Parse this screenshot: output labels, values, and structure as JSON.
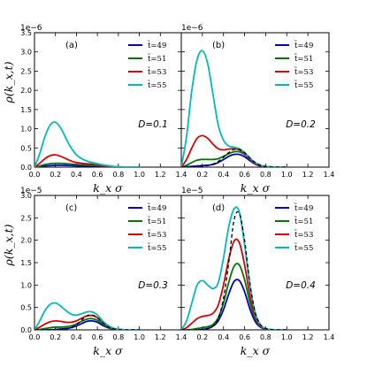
{
  "figure": {
    "xlabel": "k_x σ",
    "ylabel": "ρ(k_x,t)",
    "xticks": [
      "0.0",
      "0.2",
      "0.4",
      "0.6",
      "0.8",
      "1.0",
      "1.2",
      "1.4"
    ],
    "xlim": [
      0,
      1.4
    ]
  },
  "chart_data": [
    {
      "type": "line",
      "panel_label": "(a)",
      "param_label": "D=0.1",
      "multiplier": "1e−6",
      "ylim": [
        0,
        3.5
      ],
      "yticks": [
        "0.0",
        "0.5",
        "1.0",
        "1.5",
        "2.0",
        "2.5",
        "3.0",
        "3.5"
      ],
      "x": [
        0.0,
        0.05,
        0.1,
        0.15,
        0.2,
        0.25,
        0.3,
        0.35,
        0.4,
        0.45,
        0.5,
        0.55,
        0.6,
        0.65,
        0.7,
        0.75,
        0.8,
        0.85,
        0.9,
        1.0
      ],
      "series": [
        {
          "name": "t̃=49",
          "color": "#0000cc",
          "values": [
            0.0,
            0.01,
            0.03,
            0.04,
            0.05,
            0.05,
            0.045,
            0.04,
            0.035,
            0.03,
            0.03,
            0.025,
            0.02,
            0.015,
            0.01,
            0.005,
            0.003,
            0.002,
            0.001,
            0.0
          ]
        },
        {
          "name": "t̃=51",
          "color": "#007700",
          "values": [
            0.0,
            0.03,
            0.07,
            0.09,
            0.1,
            0.1,
            0.09,
            0.08,
            0.07,
            0.06,
            0.055,
            0.05,
            0.04,
            0.03,
            0.02,
            0.01,
            0.006,
            0.003,
            0.001,
            0.0
          ]
        },
        {
          "name": "t̃=53",
          "color": "#dd0000",
          "values": [
            0.0,
            0.1,
            0.22,
            0.3,
            0.32,
            0.28,
            0.22,
            0.16,
            0.12,
            0.1,
            0.09,
            0.08,
            0.06,
            0.04,
            0.02,
            0.01,
            0.006,
            0.003,
            0.001,
            0.0
          ]
        },
        {
          "name": "t̃=55",
          "color": "#00bbbb",
          "values": [
            0.0,
            0.35,
            0.8,
            1.1,
            1.17,
            1.02,
            0.75,
            0.5,
            0.32,
            0.22,
            0.16,
            0.12,
            0.09,
            0.06,
            0.04,
            0.02,
            0.01,
            0.005,
            0.002,
            0.0
          ]
        }
      ]
    },
    {
      "type": "line",
      "panel_label": "(b)",
      "param_label": "D=0.2",
      "multiplier": "1e−6",
      "ylim": [
        0,
        3.5
      ],
      "yticks": [
        "0.0",
        "0.5",
        "1.0",
        "1.5",
        "2.0",
        "2.5",
        "3.0",
        "3.5"
      ],
      "x": [
        0.0,
        0.05,
        0.1,
        0.15,
        0.2,
        0.25,
        0.3,
        0.35,
        0.4,
        0.45,
        0.5,
        0.55,
        0.6,
        0.65,
        0.7,
        0.75,
        0.8,
        0.85,
        0.9,
        1.0
      ],
      "series": [
        {
          "name": "t̃=49",
          "color": "#0000cc",
          "values": [
            0.0,
            0.01,
            0.02,
            0.03,
            0.04,
            0.05,
            0.07,
            0.12,
            0.2,
            0.28,
            0.33,
            0.33,
            0.27,
            0.17,
            0.08,
            0.03,
            0.01,
            0.003,
            0.001,
            0.0
          ]
        },
        {
          "name": "t̃=51",
          "color": "#007700",
          "values": [
            0.0,
            0.05,
            0.12,
            0.18,
            0.2,
            0.2,
            0.2,
            0.22,
            0.28,
            0.35,
            0.4,
            0.4,
            0.33,
            0.21,
            0.1,
            0.04,
            0.015,
            0.005,
            0.001,
            0.0
          ]
        },
        {
          "name": "t̃=53",
          "color": "#dd0000",
          "values": [
            0.0,
            0.2,
            0.5,
            0.75,
            0.82,
            0.75,
            0.6,
            0.48,
            0.45,
            0.47,
            0.48,
            0.45,
            0.35,
            0.22,
            0.1,
            0.04,
            0.015,
            0.005,
            0.001,
            0.0
          ]
        },
        {
          "name": "t̃=55",
          "color": "#00bbbb",
          "values": [
            0.0,
            0.8,
            2.0,
            2.8,
            3.03,
            2.7,
            1.9,
            1.1,
            0.7,
            0.55,
            0.52,
            0.48,
            0.38,
            0.24,
            0.12,
            0.05,
            0.02,
            0.006,
            0.002,
            0.0
          ]
        }
      ],
      "dashed": {
        "color": "#000000",
        "values": [
          0.0,
          0.0,
          0.0,
          0.01,
          0.02,
          0.04,
          0.08,
          0.15,
          0.26,
          0.38,
          0.46,
          0.46,
          0.38,
          0.24,
          0.12,
          0.05,
          0.015,
          0.004,
          0.001,
          0.0
        ]
      }
    },
    {
      "type": "line",
      "panel_label": "(c)",
      "param_label": "D=0.3",
      "multiplier": "1e−5",
      "ylim": [
        0,
        3.0
      ],
      "yticks": [
        "0.0",
        "0.5",
        "1.0",
        "1.5",
        "2.0",
        "2.5",
        "3.0"
      ],
      "x": [
        0.0,
        0.05,
        0.1,
        0.15,
        0.2,
        0.25,
        0.3,
        0.35,
        0.4,
        0.45,
        0.5,
        0.55,
        0.6,
        0.65,
        0.7,
        0.75,
        0.8,
        0.85,
        0.9,
        1.0
      ],
      "series": [
        {
          "name": "t̃=49",
          "color": "#0000cc",
          "values": [
            0.0,
            0.0,
            0.0,
            0.005,
            0.01,
            0.02,
            0.03,
            0.05,
            0.09,
            0.14,
            0.19,
            0.2,
            0.17,
            0.1,
            0.05,
            0.02,
            0.006,
            0.002,
            0.0,
            0.0
          ]
        },
        {
          "name": "t̃=51",
          "color": "#007700",
          "values": [
            0.0,
            0.01,
            0.03,
            0.05,
            0.06,
            0.06,
            0.07,
            0.09,
            0.13,
            0.19,
            0.24,
            0.25,
            0.21,
            0.13,
            0.06,
            0.02,
            0.007,
            0.002,
            0.0,
            0.0
          ]
        },
        {
          "name": "t̃=53",
          "color": "#dd0000",
          "values": [
            0.0,
            0.06,
            0.13,
            0.18,
            0.2,
            0.19,
            0.17,
            0.17,
            0.2,
            0.26,
            0.31,
            0.32,
            0.27,
            0.17,
            0.08,
            0.03,
            0.01,
            0.003,
            0.001,
            0.0
          ]
        },
        {
          "name": "t̃=55",
          "color": "#00bbbb",
          "values": [
            0.0,
            0.2,
            0.43,
            0.57,
            0.6,
            0.53,
            0.43,
            0.35,
            0.33,
            0.36,
            0.4,
            0.4,
            0.33,
            0.2,
            0.1,
            0.04,
            0.012,
            0.004,
            0.001,
            0.0
          ]
        }
      ],
      "dashed": {
        "color": "#000000",
        "values": [
          0.0,
          0.0,
          0.0,
          0.0,
          0.005,
          0.01,
          0.02,
          0.05,
          0.12,
          0.22,
          0.31,
          0.33,
          0.27,
          0.16,
          0.07,
          0.025,
          0.008,
          0.002,
          0.0,
          0.0
        ]
      }
    },
    {
      "type": "line",
      "panel_label": "(d)",
      "param_label": "D=0.4",
      "multiplier": "1e−5",
      "ylim": [
        0,
        3.0
      ],
      "yticks": [
        "0.0",
        "0.5",
        "1.0",
        "1.5",
        "2.0",
        "2.5",
        "3.0"
      ],
      "x": [
        0.0,
        0.05,
        0.1,
        0.15,
        0.2,
        0.25,
        0.3,
        0.35,
        0.4,
        0.45,
        0.5,
        0.55,
        0.6,
        0.65,
        0.7,
        0.75,
        0.8,
        0.85,
        0.9,
        1.0
      ],
      "series": [
        {
          "name": "t̃=49",
          "color": "#0000cc",
          "values": [
            0.0,
            0.0,
            0.0,
            0.0,
            0.01,
            0.03,
            0.08,
            0.2,
            0.45,
            0.8,
            1.08,
            1.1,
            0.85,
            0.47,
            0.19,
            0.06,
            0.015,
            0.003,
            0.001,
            0.0
          ]
        },
        {
          "name": "t̃=51",
          "color": "#007700",
          "values": [
            0.0,
            0.0,
            0.01,
            0.03,
            0.05,
            0.07,
            0.12,
            0.27,
            0.6,
            1.06,
            1.42,
            1.45,
            1.12,
            0.62,
            0.25,
            0.08,
            0.02,
            0.004,
            0.001,
            0.0
          ]
        },
        {
          "name": "t̃=53",
          "color": "#dd0000",
          "values": [
            0.0,
            0.05,
            0.15,
            0.25,
            0.3,
            0.32,
            0.37,
            0.55,
            1.0,
            1.58,
            1.98,
            1.95,
            1.45,
            0.78,
            0.3,
            0.09,
            0.022,
            0.005,
            0.001,
            0.0
          ]
        },
        {
          "name": "t̃=55",
          "color": "#00bbbb",
          "values": [
            0.0,
            0.2,
            0.6,
            1.0,
            1.1,
            1.0,
            0.92,
            1.05,
            1.6,
            2.3,
            2.7,
            2.63,
            1.9,
            1.0,
            0.38,
            0.11,
            0.028,
            0.006,
            0.001,
            0.0
          ]
        }
      ],
      "dashed": {
        "color": "#000000",
        "values": [
          0.0,
          0.0,
          0.0,
          0.0,
          0.01,
          0.03,
          0.08,
          0.25,
          0.7,
          1.5,
          2.45,
          2.6,
          2.0,
          1.05,
          0.4,
          0.12,
          0.03,
          0.006,
          0.001,
          0.0
        ]
      }
    }
  ]
}
